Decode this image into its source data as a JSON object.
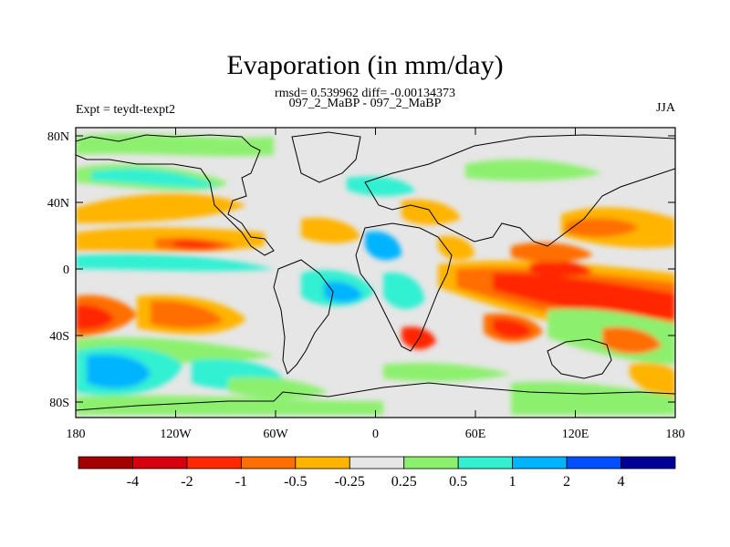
{
  "header": {
    "title": "Evaporation (in mm/day)",
    "stats": "rmsd= 0.539962 diff= -0.00134373",
    "comparison": "097_2_MaBP - 097_2_MaBP",
    "experiment": "Expt = teydt-texpt2",
    "season": "JJA"
  },
  "map": {
    "x_ticks": [
      "180",
      "120W",
      "60W",
      "0",
      "60E",
      "120E",
      "180"
    ],
    "y_ticks": [
      "80N",
      "40N",
      "0",
      "40S",
      "80S"
    ],
    "background_color": "#e6e6e6",
    "land_outline_color": "#000000"
  },
  "colorbar": {
    "colors": [
      "#a50000",
      "#d7000f",
      "#ff2800",
      "#ff6e00",
      "#ffb400",
      "#e6e6e6",
      "#8cf06e",
      "#32f0d2",
      "#00b4ff",
      "#0050ff",
      "#000096"
    ],
    "labels": [
      "-4",
      "-2",
      "-1",
      "-0.5",
      "-0.25",
      "0.25",
      "0.5",
      "1",
      "2",
      "4"
    ]
  }
}
